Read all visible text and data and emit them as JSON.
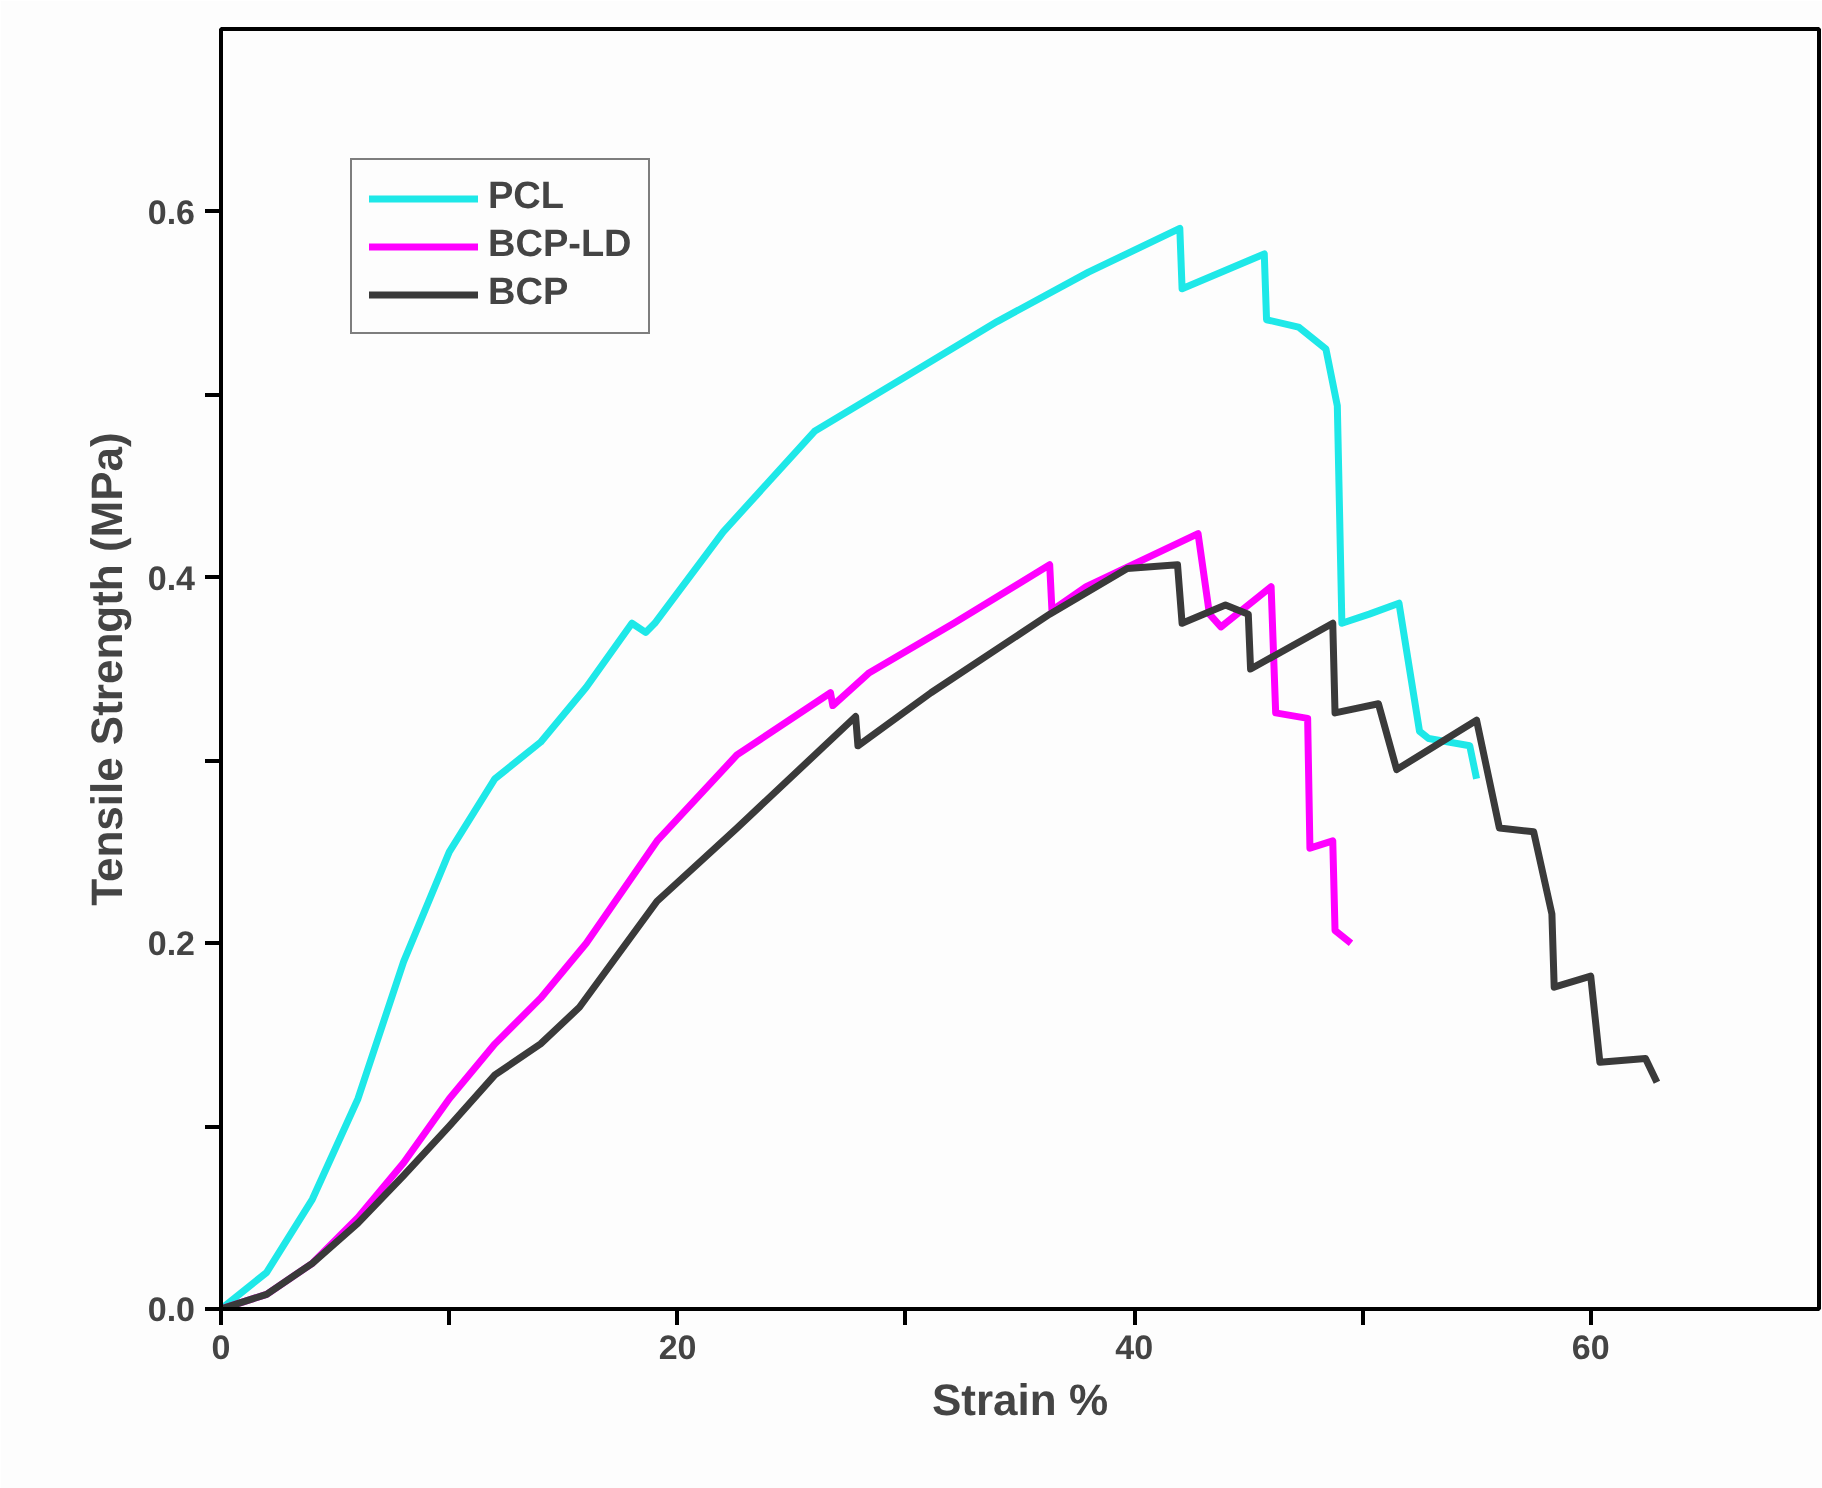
{
  "chart_data": {
    "type": "line",
    "xlabel": "Strain %",
    "ylabel": "Tensile Strength (MPa)",
    "xlim": [
      0,
      70
    ],
    "ylim": [
      0,
      0.7
    ],
    "xticks": [
      0,
      {
        "value": 10,
        "label": null
      },
      20,
      {
        "value": 30,
        "label": null
      },
      40,
      {
        "value": 50,
        "label": null
      },
      60
    ],
    "yticks": [
      {
        "value": 0,
        "label": "0.0"
      },
      {
        "value": 0.1,
        "label": null
      },
      {
        "value": 0.2,
        "label": "0.2"
      },
      {
        "value": 0.3,
        "label": null
      },
      {
        "value": 0.4,
        "label": "0.4"
      },
      {
        "value": 0.5,
        "label": null
      },
      {
        "value": 0.6,
        "label": "0.6"
      }
    ],
    "grid": false,
    "legend": "top left",
    "line_style": "solid",
    "marker": "none",
    "series": [
      {
        "name": "PCL",
        "color": "#1ee8e8",
        "x": [
          0,
          2,
          4,
          6,
          8,
          10,
          12,
          14,
          16,
          18,
          18.6,
          19,
          22,
          26,
          30,
          34,
          38,
          42,
          42.1,
          45.7,
          45.8,
          47.2,
          48.4,
          48.9,
          49.1,
          50.3,
          51.6,
          52.5,
          52.9,
          54.7,
          55.0
        ],
        "values": [
          0,
          0.02,
          0.06,
          0.115,
          0.19,
          0.25,
          0.29,
          0.31,
          0.34,
          0.375,
          0.37,
          0.375,
          0.425,
          0.48,
          0.51,
          0.54,
          0.567,
          0.591,
          0.558,
          0.577,
          0.541,
          0.537,
          0.525,
          0.494,
          0.375,
          0.38,
          0.386,
          0.316,
          0.312,
          0.308,
          0.29
        ]
      },
      {
        "name": "BCP-LD",
        "color": "#ff00ff",
        "x": [
          0,
          2,
          4,
          6,
          8,
          10,
          12,
          14,
          16,
          19.1,
          22.6,
          26.7,
          26.8,
          28.4,
          32.1,
          36.3,
          36.4,
          37.9,
          42.8,
          43.3,
          43.8,
          46.0,
          46.2,
          47.6,
          47.7,
          48.7,
          48.8,
          49.5
        ],
        "values": [
          0,
          0.008,
          0.025,
          0.05,
          0.08,
          0.115,
          0.145,
          0.17,
          0.2,
          0.256,
          0.303,
          0.337,
          0.33,
          0.348,
          0.375,
          0.407,
          0.382,
          0.395,
          0.424,
          0.38,
          0.373,
          0.395,
          0.326,
          0.323,
          0.252,
          0.256,
          0.207,
          0.2
        ]
      },
      {
        "name": "BCP",
        "color": "#3a3a3a",
        "x": [
          0,
          2,
          4,
          6,
          8,
          10,
          12,
          14,
          15.7,
          19.1,
          22.6,
          27.8,
          27.9,
          31.1,
          36.3,
          39.7,
          41.9,
          42.1,
          44.0,
          45.0,
          45.1,
          48.7,
          48.8,
          50.7,
          51.5,
          55.0,
          56.0,
          57.5,
          58.3,
          58.4,
          60.0,
          60.4,
          62.4,
          62.9
        ],
        "values": [
          0,
          0.008,
          0.025,
          0.047,
          0.073,
          0.1,
          0.128,
          0.145,
          0.165,
          0.223,
          0.263,
          0.324,
          0.308,
          0.337,
          0.38,
          0.405,
          0.407,
          0.375,
          0.385,
          0.38,
          0.35,
          0.375,
          0.326,
          0.331,
          0.295,
          0.322,
          0.263,
          0.261,
          0.216,
          0.176,
          0.182,
          0.135,
          0.137,
          0.124
        ]
      }
    ]
  }
}
